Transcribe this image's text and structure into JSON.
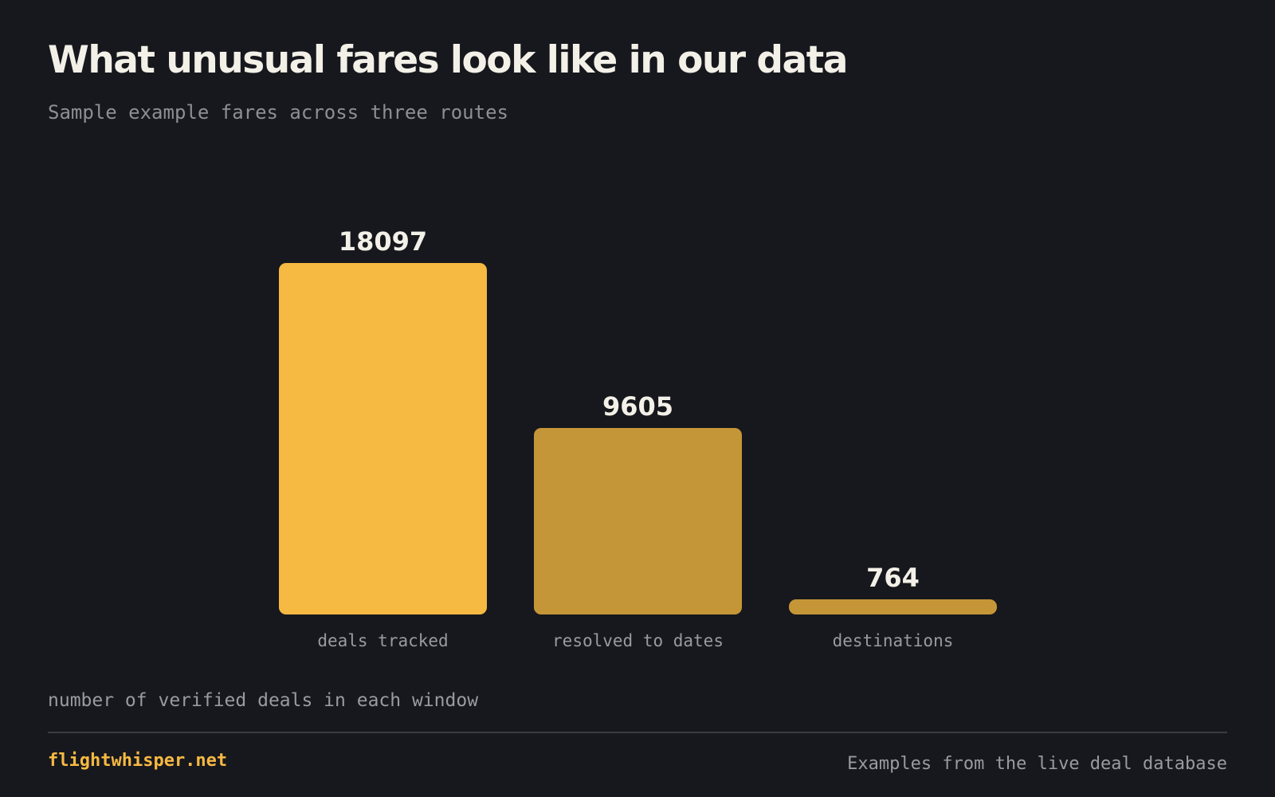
{
  "header": {
    "title": "What unusual fares look like in our data",
    "subtitle": "Sample example fares across three routes"
  },
  "chart_data": {
    "type": "bar",
    "categories": [
      "deals tracked",
      "resolved to dates",
      "destinations"
    ],
    "values": [
      18097,
      9605,
      764
    ],
    "data_labels": [
      "18097",
      "9605",
      "764"
    ],
    "bar_colors": [
      "#f6b942",
      "#c59637",
      "#c59637"
    ],
    "ylim": [
      0,
      18097
    ],
    "grid": false,
    "legend": "none",
    "axis_note": "number of verified deals in each window"
  },
  "footer": {
    "brand": "flightwhisper.net",
    "source_note": "Examples from the live deal database"
  },
  "colors": {
    "background": "#17181d",
    "title": "#f3f0e8",
    "muted": "#9a9aa0",
    "accent": "#f6b942",
    "bar_secondary": "#c59637",
    "divider": "#3a3b42"
  }
}
